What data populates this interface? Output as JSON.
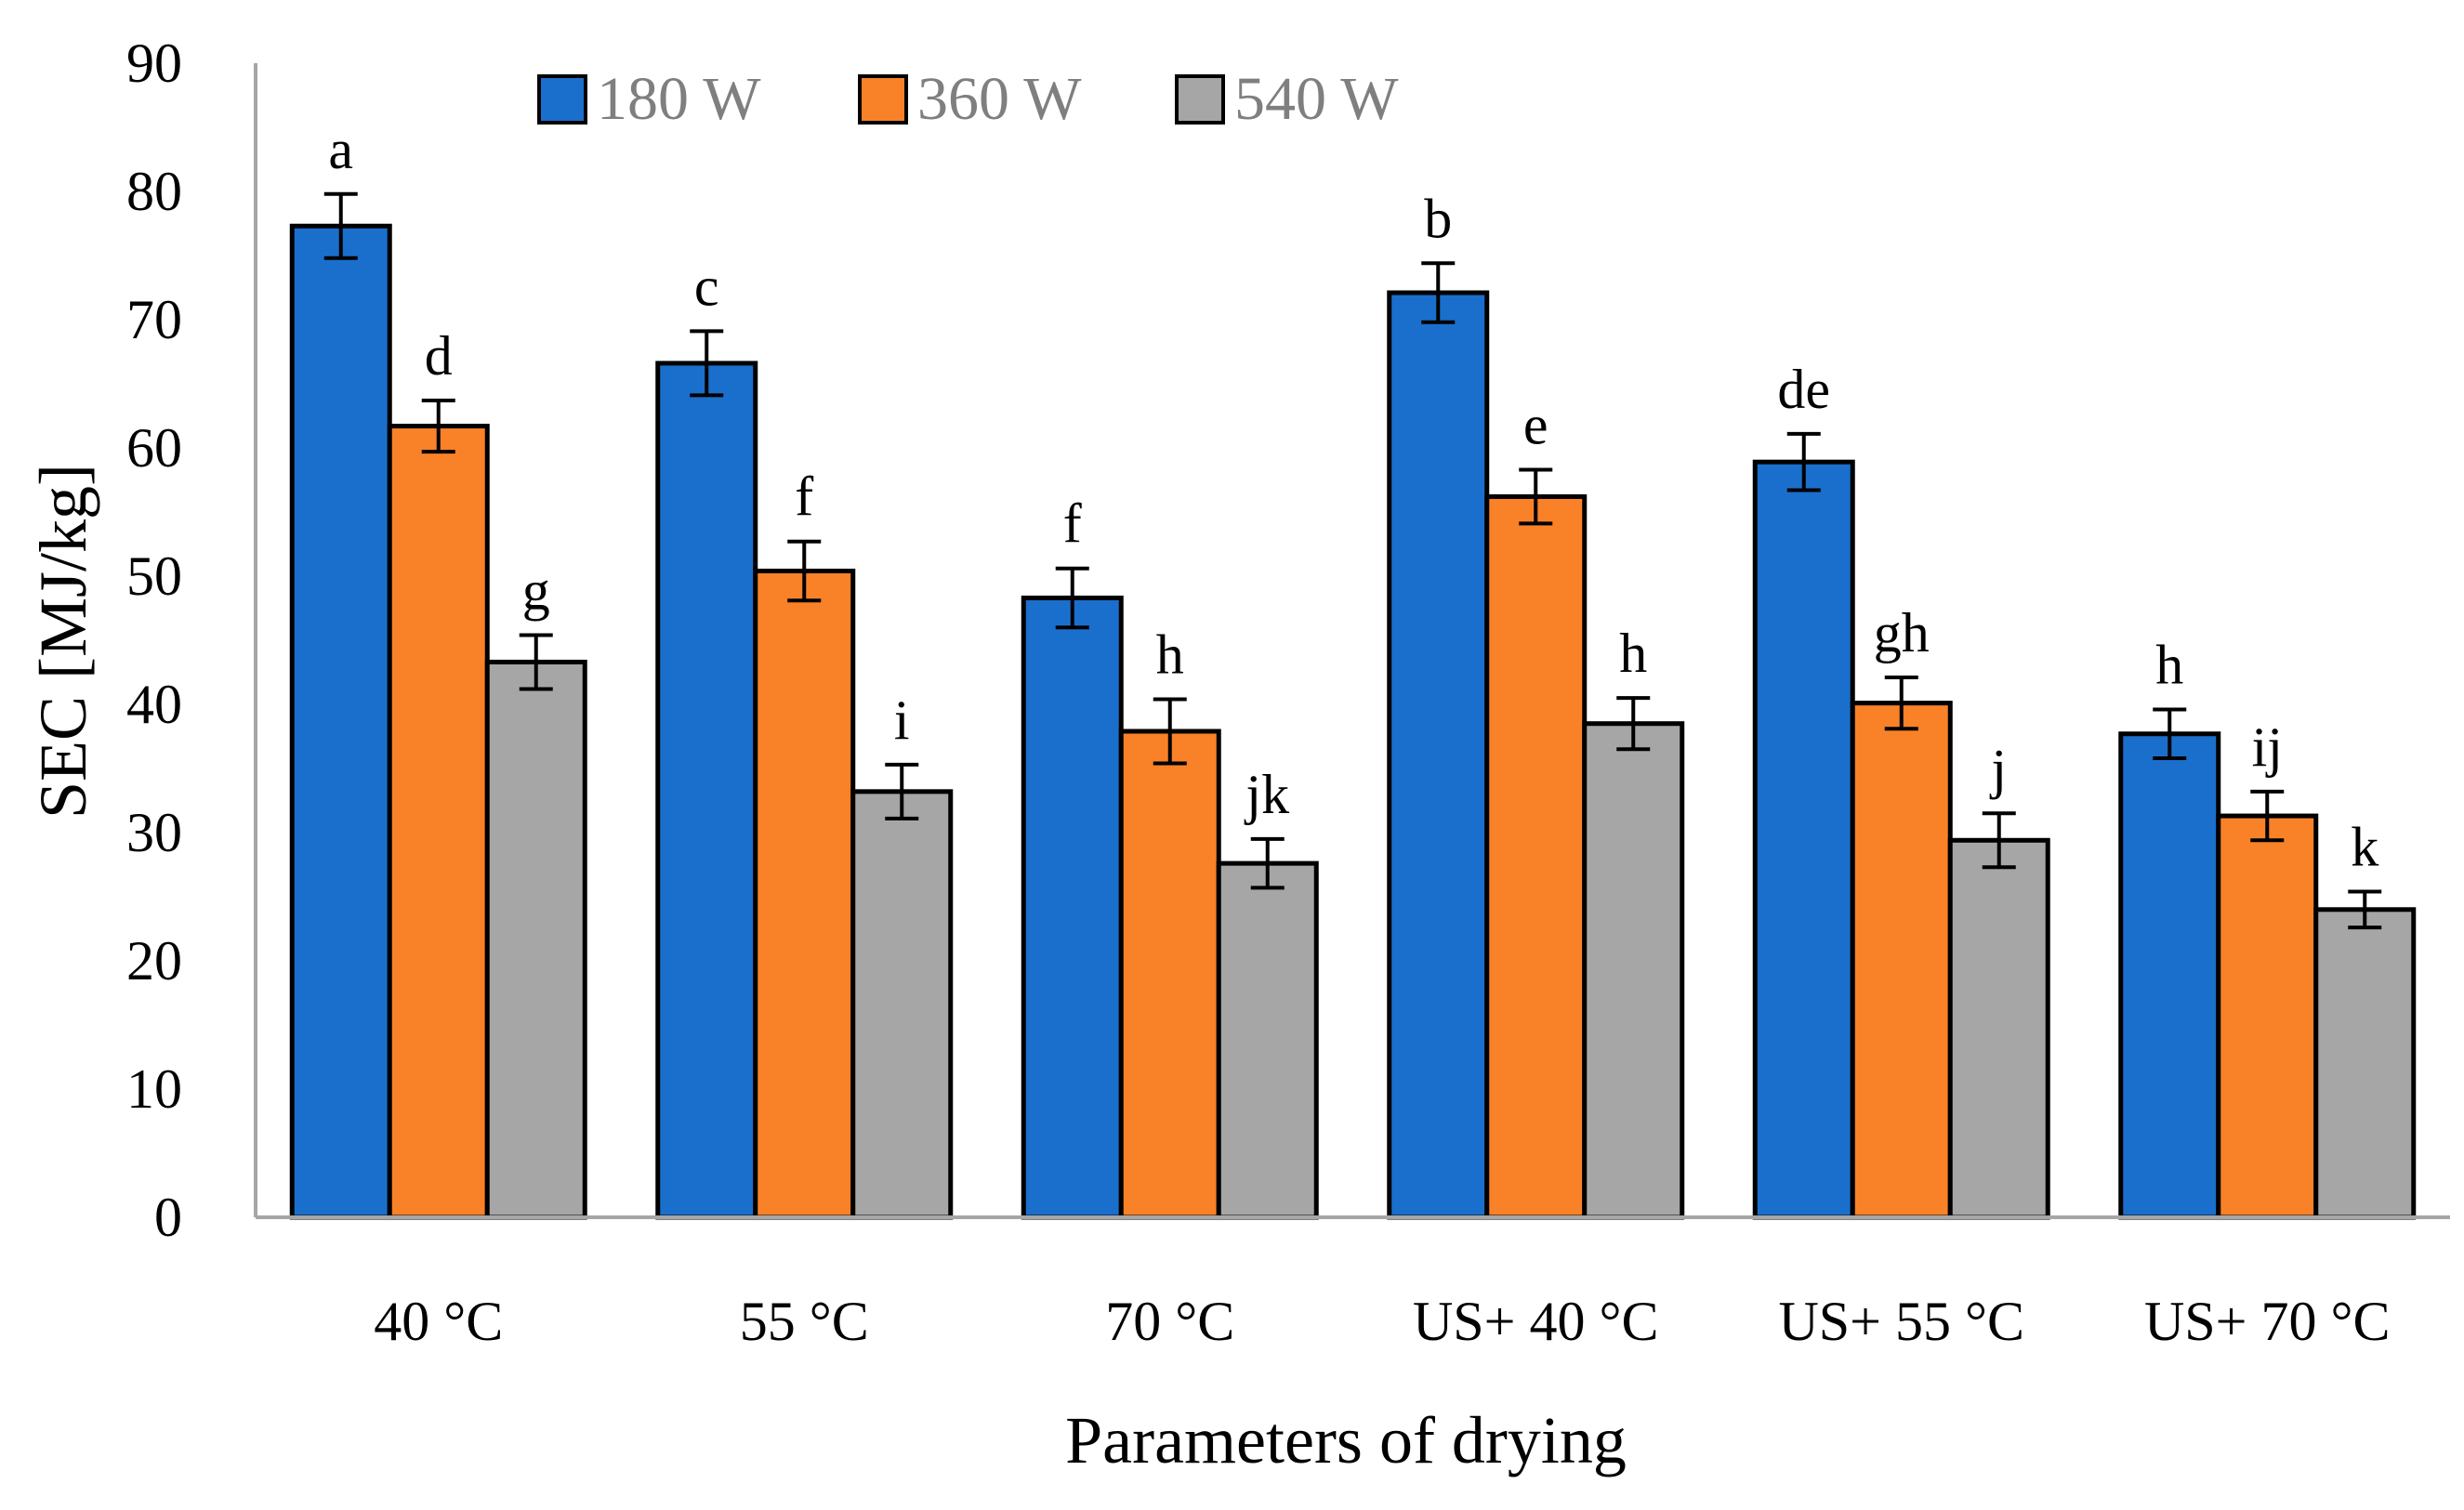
{
  "chart_data": {
    "type": "bar",
    "title": "",
    "xlabel": "Parameters of drying",
    "ylabel": "SEC [MJ/kg]",
    "ylim": [
      0,
      90
    ],
    "yticks": [
      "0",
      "10",
      "20",
      "30",
      "40",
      "50",
      "60",
      "70",
      "80",
      "90"
    ],
    "grid": false,
    "legend_position": "top",
    "categories": [
      "40 °C",
      "55 °C",
      "70 °C",
      "US+ 40 °C",
      "US+ 55 °C",
      "US+ 70 °C"
    ],
    "series": [
      {
        "name": "180 W",
        "color": "#1b6fcc",
        "values": [
          77.3,
          66.6,
          48.3,
          72.1,
          58.9,
          37.7
        ],
        "errors": [
          2.5,
          2.5,
          2.3,
          2.3,
          2.2,
          1.9
        ],
        "labels": [
          "a",
          "c",
          "f",
          "b",
          "de",
          "h"
        ]
      },
      {
        "name": "360 W",
        "color": "#f98128",
        "values": [
          61.7,
          50.4,
          37.9,
          56.2,
          40.1,
          31.3
        ],
        "errors": [
          2.0,
          2.3,
          2.5,
          2.1,
          2.0,
          1.9
        ],
        "labels": [
          "d",
          "f",
          "h",
          "e",
          "gh",
          "ij"
        ]
      },
      {
        "name": "540 W",
        "color": "#a6a6a6",
        "values": [
          43.3,
          33.2,
          27.6,
          38.5,
          29.4,
          24.0
        ],
        "errors": [
          2.1,
          2.1,
          1.9,
          2.0,
          2.1,
          1.4
        ],
        "labels": [
          "g",
          "i",
          "jk",
          "h",
          "j",
          "k"
        ]
      }
    ]
  }
}
